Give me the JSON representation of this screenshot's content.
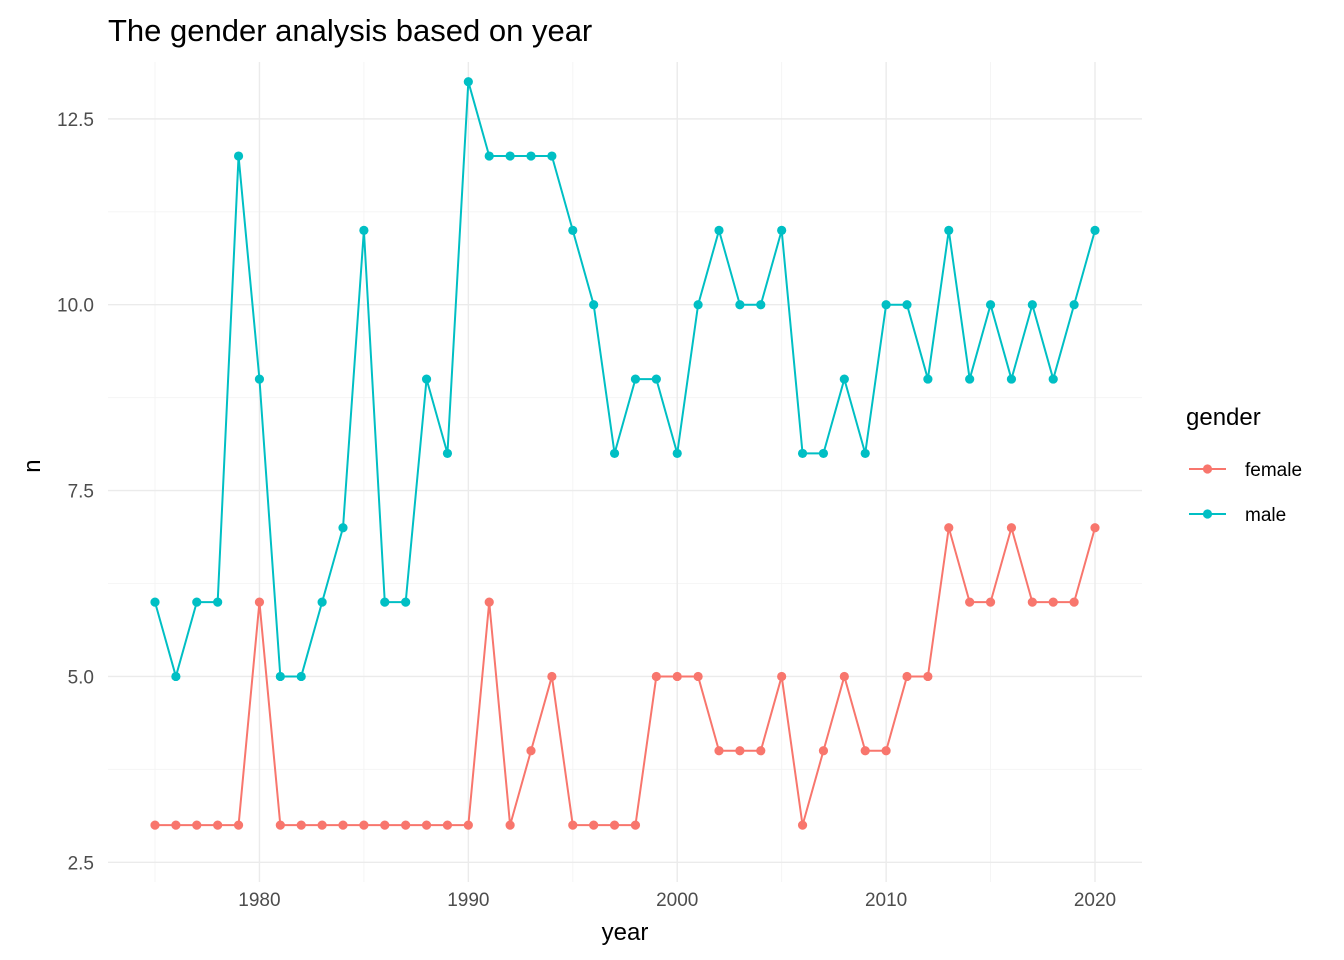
{
  "chart_data": {
    "type": "line",
    "title": "The gender analysis based on year",
    "xlabel": "year",
    "ylabel": "n",
    "xlim": [
      1975,
      2020
    ],
    "ylim": [
      2.5,
      13
    ],
    "x_ticks": [
      1980,
      1990,
      2000,
      2010,
      2020
    ],
    "x_tick_labels": [
      "1980",
      "1990",
      "2000",
      "2010",
      "2020"
    ],
    "y_ticks": [
      2.5,
      5.0,
      7.5,
      10.0,
      12.5
    ],
    "y_tick_labels": [
      "2.5",
      "5.0",
      "7.5",
      "10.0",
      "12.5"
    ],
    "grid": true,
    "markers": true,
    "legend": {
      "title": "gender",
      "position": "right"
    },
    "x": [
      1975,
      1976,
      1977,
      1978,
      1979,
      1980,
      1981,
      1982,
      1983,
      1984,
      1985,
      1986,
      1987,
      1988,
      1989,
      1990,
      1991,
      1992,
      1993,
      1994,
      1995,
      1996,
      1997,
      1998,
      1999,
      2000,
      2001,
      2002,
      2003,
      2004,
      2005,
      2006,
      2007,
      2008,
      2009,
      2010,
      2011,
      2012,
      2013,
      2014,
      2015,
      2016,
      2017,
      2018,
      2019,
      2020
    ],
    "series": [
      {
        "name": "female",
        "color": "#F8766D",
        "values": [
          3,
          3,
          3,
          3,
          3,
          6,
          3,
          3,
          3,
          3,
          3,
          3,
          3,
          3,
          3,
          3,
          6,
          3,
          4,
          5,
          3,
          3,
          3,
          3,
          5,
          5,
          5,
          4,
          4,
          4,
          5,
          3,
          4,
          5,
          4,
          4,
          5,
          5,
          7,
          6,
          6,
          7,
          6,
          6,
          6,
          7
        ]
      },
      {
        "name": "male",
        "color": "#00BFC4",
        "values": [
          6,
          5,
          6,
          6,
          12,
          9,
          5,
          5,
          6,
          7,
          11,
          6,
          6,
          9,
          8,
          13,
          12,
          12,
          12,
          12,
          11,
          10,
          8,
          9,
          9,
          8,
          10,
          11,
          10,
          10,
          11,
          8,
          8,
          9,
          8,
          10,
          10,
          9,
          11,
          9,
          10,
          9,
          10,
          9,
          10,
          11
        ]
      }
    ]
  }
}
